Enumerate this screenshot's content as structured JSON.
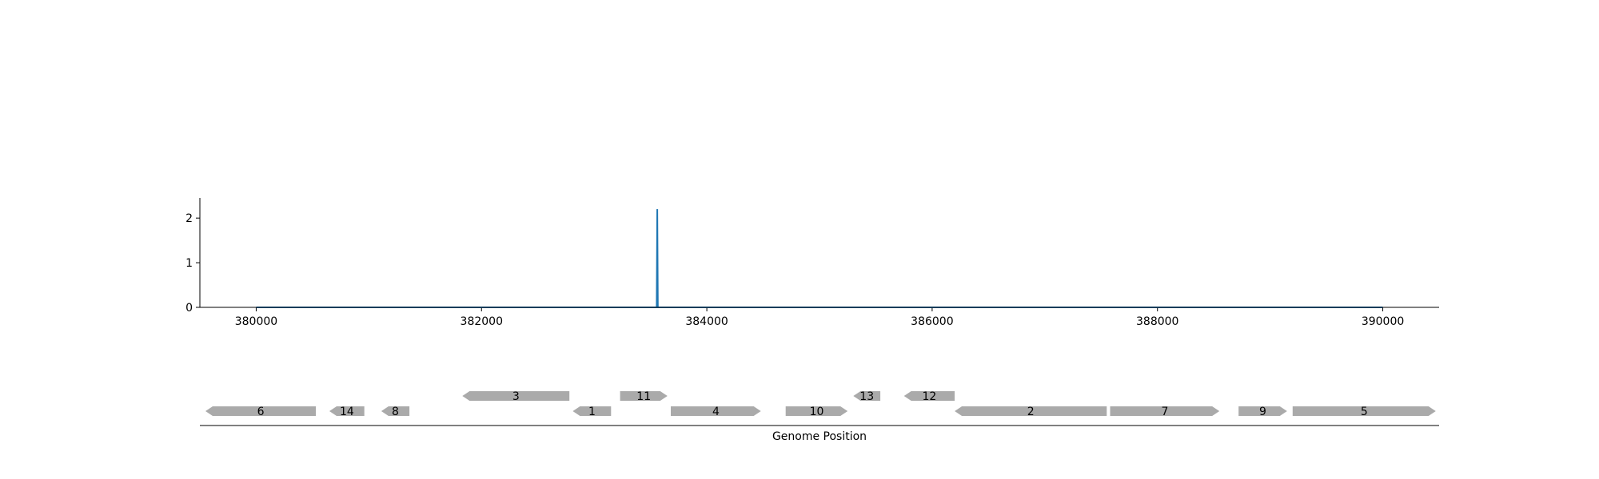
{
  "chart_data": [
    {
      "type": "line",
      "title": "",
      "xlabel": "",
      "ylabel": "",
      "xlim": [
        379500,
        390500
      ],
      "ylim": [
        0,
        2.45
      ],
      "x_ticks": [
        380000,
        382000,
        384000,
        386000,
        388000,
        390000
      ],
      "x_tick_labels": [
        "380000",
        "382000",
        "384000",
        "386000",
        "388000",
        "390000"
      ],
      "y_ticks": [
        0,
        1,
        2
      ],
      "y_tick_labels": [
        "0",
        "1",
        "2"
      ],
      "grid": false,
      "legend": "none",
      "series": [
        {
          "points": [
            [
              380000,
              0
            ],
            [
              383555,
              0
            ],
            [
              383560,
              2.2
            ],
            [
              383565,
              0
            ],
            [
              390000,
              0
            ]
          ]
        }
      ],
      "colors": {
        "line": "#1f77b4"
      }
    },
    {
      "type": "gene-track",
      "xlabel": "Genome Position",
      "xlim": [
        379500,
        390500
      ],
      "genes": [
        {
          "label": "6",
          "start": 379550,
          "end": 380530,
          "strand": "-",
          "row": 0
        },
        {
          "label": "14",
          "start": 380650,
          "end": 380960,
          "strand": "-",
          "row": 0
        },
        {
          "label": "8",
          "start": 381110,
          "end": 381360,
          "strand": "-",
          "row": 0
        },
        {
          "label": "3",
          "start": 381830,
          "end": 382780,
          "strand": "-",
          "row": 1
        },
        {
          "label": "1",
          "start": 382810,
          "end": 383150,
          "strand": "-",
          "row": 0
        },
        {
          "label": "11",
          "start": 383230,
          "end": 383650,
          "strand": "+",
          "row": 1
        },
        {
          "label": "4",
          "start": 383680,
          "end": 384480,
          "strand": "+",
          "row": 0
        },
        {
          "label": "10",
          "start": 384700,
          "end": 385250,
          "strand": "+",
          "row": 0
        },
        {
          "label": "13",
          "start": 385300,
          "end": 385540,
          "strand": "-",
          "row": 1
        },
        {
          "label": "12",
          "start": 385750,
          "end": 386200,
          "strand": "-",
          "row": 1
        },
        {
          "label": "2",
          "start": 386200,
          "end": 387550,
          "strand": "-",
          "row": 0
        },
        {
          "label": "7",
          "start": 387580,
          "end": 388550,
          "strand": "+",
          "row": 0
        },
        {
          "label": "9",
          "start": 388720,
          "end": 389150,
          "strand": "+",
          "row": 0
        },
        {
          "label": "5",
          "start": 389200,
          "end": 390470,
          "strand": "+",
          "row": 0
        }
      ],
      "colors": {
        "gene": "#aaaaaa"
      }
    }
  ]
}
